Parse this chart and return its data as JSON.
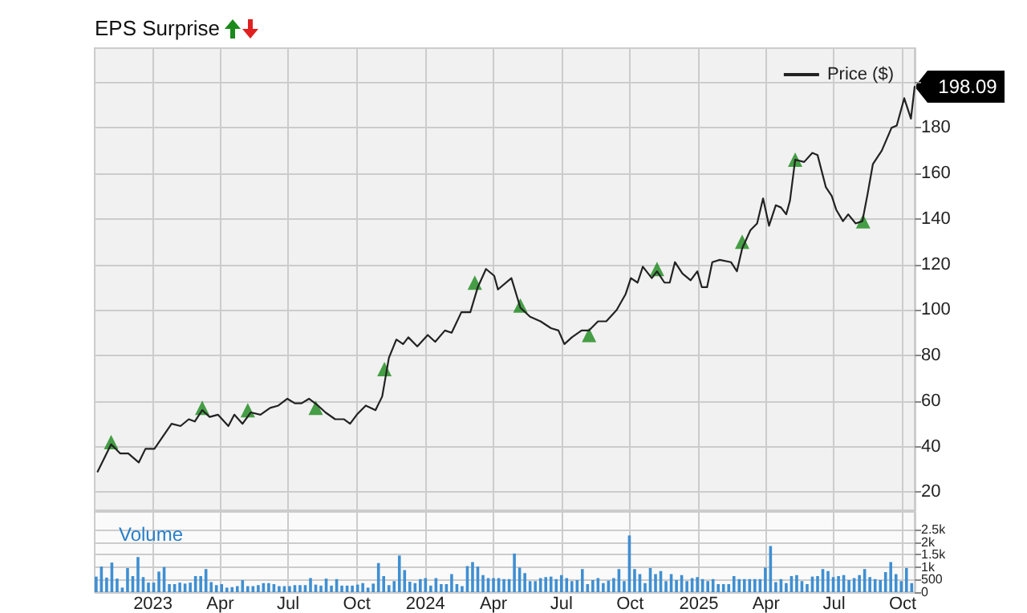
{
  "chart_data": [
    {
      "type": "line",
      "title": "EPS Surprise",
      "legend": "top right",
      "grid": true,
      "tick_labels": "y",
      "xlim": [
        "2022-10-15",
        "2025-10-17"
      ],
      "xticks": [
        {
          "value": "2023-01-01",
          "label": null
        },
        {
          "value": "2023-04-01",
          "label": null
        },
        {
          "value": "2023-07-01",
          "label": null
        },
        {
          "value": "2023-10-01",
          "label": null
        },
        {
          "value": "2024-01-01",
          "label": null
        },
        {
          "value": "2024-04-01",
          "label": null
        },
        {
          "value": "2024-07-01",
          "label": null
        },
        {
          "value": "2024-10-01",
          "label": null
        },
        {
          "value": "2025-01-01",
          "label": null
        },
        {
          "value": "2025-04-01",
          "label": null
        },
        {
          "value": "2025-07-01",
          "label": null
        },
        {
          "value": "2025-10-01",
          "label": null
        }
      ],
      "ylim": [
        12,
        215
      ],
      "yticks": [
        20,
        40,
        60,
        80,
        100,
        120,
        140,
        160,
        180,
        {
          "value": 200,
          "label": null
        }
      ],
      "annotations": [
        {
          "text": "198.09",
          "x": "2025-10-17",
          "y": 198.09
        }
      ],
      "series": [
        {
          "name": "Price ($)",
          "color": "#222222",
          "marker": "none",
          "x": [
            "2022-10-19",
            "2022-10-28",
            "2022-11-06",
            "2022-11-18",
            "2022-11-29",
            "2022-12-13",
            "2022-12-22",
            "2023-01-03",
            "2023-01-26",
            "2023-02-07",
            "2023-02-18",
            "2023-02-26",
            "2023-03-08",
            "2023-03-18",
            "2023-03-29",
            "2023-04-12",
            "2023-04-20",
            "2023-05-01",
            "2023-05-12",
            "2023-05-25",
            "2023-06-07",
            "2023-06-18",
            "2023-06-30",
            "2023-07-10",
            "2023-07-19",
            "2023-07-29",
            "2023-08-10",
            "2023-08-20",
            "2023-09-02",
            "2023-09-14",
            "2023-09-22",
            "2023-10-01",
            "2023-10-13",
            "2023-10-26",
            "2023-11-04",
            "2023-11-13",
            "2023-11-23",
            "2023-12-02",
            "2023-12-09",
            "2023-12-21",
            "2024-01-04",
            "2024-01-14",
            "2024-01-27",
            "2024-02-05",
            "2024-02-18",
            "2024-03-01",
            "2024-03-11",
            "2024-03-22",
            "2024-04-02",
            "2024-04-07",
            "2024-04-25",
            "2024-05-07",
            "2024-05-20",
            "2024-06-03",
            "2024-06-17",
            "2024-06-27",
            "2024-07-05",
            "2024-07-15",
            "2024-07-28",
            "2024-08-07",
            "2024-08-19",
            "2024-08-30",
            "2024-09-13",
            "2024-09-25",
            "2024-10-02",
            "2024-10-11",
            "2024-10-18",
            "2024-10-30",
            "2024-11-06",
            "2024-11-16",
            "2024-11-23",
            "2024-11-30",
            "2024-12-10",
            "2024-12-21",
            "2024-12-30",
            "2025-01-05",
            "2025-01-12",
            "2025-01-19",
            "2025-01-29",
            "2025-02-13",
            "2025-02-21",
            "2025-02-28",
            "2025-03-11",
            "2025-03-20",
            "2025-03-28",
            "2025-04-05",
            "2025-04-14",
            "2025-04-21",
            "2025-04-28",
            "2025-05-03",
            "2025-05-10",
            "2025-05-22",
            "2025-06-02",
            "2025-06-09",
            "2025-06-20",
            "2025-06-28",
            "2025-07-04",
            "2025-07-13",
            "2025-07-20",
            "2025-07-30",
            "2025-08-08",
            "2025-08-15",
            "2025-08-22",
            "2025-09-03",
            "2025-09-16",
            "2025-09-23",
            "2025-10-03",
            "2025-10-12",
            "2025-10-17"
          ],
          "values": [
            29,
            35,
            41,
            37,
            37,
            33,
            39,
            39,
            50,
            49,
            52,
            51,
            56,
            53,
            54,
            49,
            54,
            50,
            55,
            54,
            57,
            58,
            61,
            59,
            59,
            61,
            58,
            55,
            52,
            52,
            50,
            54,
            58,
            56,
            62,
            79,
            87,
            85,
            88,
            84,
            89,
            86,
            91,
            90,
            99,
            99,
            110,
            118,
            115,
            109,
            114,
            101,
            97,
            95,
            92,
            91,
            85,
            88,
            91,
            91,
            95,
            95,
            100,
            107,
            114,
            112,
            119,
            114,
            117,
            112,
            112,
            121,
            116,
            113,
            117,
            110,
            110,
            121,
            122,
            121,
            117,
            127,
            135,
            138,
            149,
            137,
            146,
            145,
            142,
            148,
            166,
            165,
            169,
            168,
            154,
            150,
            144,
            139,
            142,
            138,
            139,
            151,
            164,
            170,
            180,
            181,
            193,
            184,
            198.09
          ]
        },
        {
          "type": "scatter",
          "color": "#1a8a1a",
          "marker": "triangle",
          "x": [
            "2022-11-06",
            "2023-03-08",
            "2023-05-08",
            "2023-08-07",
            "2023-11-07",
            "2024-03-07",
            "2024-05-07",
            "2024-08-07",
            "2024-11-06",
            "2025-02-28",
            "2025-05-10",
            "2025-08-09"
          ],
          "values": [
            42,
            57,
            56,
            57,
            74,
            112,
            102,
            89,
            118,
            130,
            166,
            139
          ]
        }
      ]
    },
    {
      "type": "bar",
      "title": "Volume",
      "legend": false,
      "grid": true,
      "xlim": [
        "2022-10-15",
        "2025-10-17"
      ],
      "xticks": [
        {
          "value": "2023-01-01",
          "label": "2023"
        },
        {
          "value": "2023-04-01",
          "label": "Apr"
        },
        {
          "value": "2023-07-01",
          "label": "Jul"
        },
        {
          "value": "2023-10-01",
          "label": "Oct"
        },
        {
          "value": "2024-01-01",
          "label": "2024"
        },
        {
          "value": "2024-04-01",
          "label": "Apr"
        },
        {
          "value": "2024-07-01",
          "label": "Jul"
        },
        {
          "value": "2024-10-01",
          "label": "Oct"
        },
        {
          "value": "2025-01-01",
          "label": "2025"
        },
        {
          "value": "2025-04-01",
          "label": "Apr"
        },
        {
          "value": "2025-07-01",
          "label": "Jul"
        },
        {
          "value": "2025-10-01",
          "label": "Oct"
        }
      ],
      "ylim": [
        0,
        3200
      ],
      "yticks": [
        0,
        500,
        {
          "value": 1000,
          "label": "1k"
        },
        {
          "value": 1500,
          "label": "1.5k"
        },
        {
          "value": 2000,
          "label": "2k"
        },
        {
          "value": 2500,
          "label": "2.5k"
        }
      ],
      "series": [
        {
          "color": "#3f8fd2",
          "x": [
            "2022-10-17",
            "2022-10-24",
            "2022-10-31",
            "2022-11-07",
            "2022-11-14",
            "2022-11-21",
            "2022-11-28",
            "2022-12-05",
            "2022-12-12",
            "2022-12-19",
            "2022-12-26",
            "2023-01-02",
            "2023-01-09",
            "2023-01-16",
            "2023-01-23",
            "2023-01-30",
            "2023-02-06",
            "2023-02-13",
            "2023-02-20",
            "2023-02-27",
            "2023-03-06",
            "2023-03-13",
            "2023-03-20",
            "2023-03-27",
            "2023-04-03",
            "2023-04-10",
            "2023-04-17",
            "2023-04-24",
            "2023-05-01",
            "2023-05-08",
            "2023-05-15",
            "2023-05-22",
            "2023-05-29",
            "2023-06-05",
            "2023-06-12",
            "2023-06-19",
            "2023-06-26",
            "2023-07-03",
            "2023-07-10",
            "2023-07-17",
            "2023-07-24",
            "2023-07-31",
            "2023-08-07",
            "2023-08-14",
            "2023-08-21",
            "2023-08-28",
            "2023-09-04",
            "2023-09-11",
            "2023-09-18",
            "2023-09-25",
            "2023-10-02",
            "2023-10-09",
            "2023-10-16",
            "2023-10-23",
            "2023-10-30",
            "2023-11-06",
            "2023-11-13",
            "2023-11-20",
            "2023-11-27",
            "2023-12-04",
            "2023-12-11",
            "2023-12-18",
            "2023-12-25",
            "2024-01-01",
            "2024-01-08",
            "2024-01-15",
            "2024-01-22",
            "2024-01-29",
            "2024-02-05",
            "2024-02-12",
            "2024-02-19",
            "2024-02-26",
            "2024-03-04",
            "2024-03-11",
            "2024-03-18",
            "2024-03-25",
            "2024-04-01",
            "2024-04-08",
            "2024-04-15",
            "2024-04-22",
            "2024-04-29",
            "2024-05-06",
            "2024-05-13",
            "2024-05-20",
            "2024-05-27",
            "2024-06-03",
            "2024-06-10",
            "2024-06-17",
            "2024-06-24",
            "2024-07-01",
            "2024-07-08",
            "2024-07-15",
            "2024-07-22",
            "2024-07-29",
            "2024-08-05",
            "2024-08-12",
            "2024-08-19",
            "2024-08-26",
            "2024-09-02",
            "2024-09-09",
            "2024-09-16",
            "2024-09-23",
            "2024-09-30",
            "2024-10-07",
            "2024-10-14",
            "2024-10-21",
            "2024-10-28",
            "2024-11-04",
            "2024-11-11",
            "2024-11-18",
            "2024-11-25",
            "2024-12-02",
            "2024-12-09",
            "2024-12-16",
            "2024-12-23",
            "2024-12-30",
            "2025-01-06",
            "2025-01-13",
            "2025-01-20",
            "2025-01-27",
            "2025-02-03",
            "2025-02-10",
            "2025-02-17",
            "2025-02-24",
            "2025-03-03",
            "2025-03-10",
            "2025-03-17",
            "2025-03-24",
            "2025-03-31",
            "2025-04-07",
            "2025-04-14",
            "2025-04-21",
            "2025-04-28",
            "2025-05-05",
            "2025-05-12",
            "2025-05-19",
            "2025-05-26",
            "2025-06-02",
            "2025-06-09",
            "2025-06-16",
            "2025-06-23",
            "2025-06-30",
            "2025-07-07",
            "2025-07-14",
            "2025-07-21",
            "2025-07-28",
            "2025-08-04",
            "2025-08-11",
            "2025-08-18",
            "2025-08-25",
            "2025-09-01",
            "2025-09-08",
            "2025-09-15",
            "2025-09-22",
            "2025-09-29",
            "2025-10-06",
            "2025-10-13"
          ],
          "values": [
            620,
            1020,
            580,
            1180,
            540,
            180,
            960,
            640,
            1400,
            600,
            380,
            380,
            820,
            1000,
            320,
            320,
            380,
            340,
            380,
            640,
            640,
            920,
            400,
            280,
            320,
            180,
            200,
            240,
            480,
            240,
            240,
            280,
            360,
            360,
            320,
            240,
            240,
            240,
            280,
            280,
            280,
            560,
            300,
            260,
            540,
            260,
            520,
            260,
            260,
            260,
            300,
            360,
            180,
            340,
            1160,
            640,
            280,
            440,
            1460,
            880,
            420,
            360,
            520,
            560,
            260,
            560,
            320,
            320,
            720,
            320,
            240,
            1040,
            1200,
            1020,
            680,
            560,
            560,
            560,
            520,
            520,
            1540,
            980,
            760,
            440,
            440,
            560,
            600,
            620,
            520,
            680,
            560,
            440,
            480,
            920,
            320,
            480,
            560,
            360,
            460,
            560,
            920,
            440,
            2260,
            920,
            720,
            360,
            960,
            720,
            840,
            440,
            720,
            480,
            680,
            440,
            560,
            600,
            520,
            440,
            520,
            320,
            320,
            320,
            640,
            520,
            520,
            520,
            520,
            520,
            980,
            1840,
            400,
            520,
            360,
            640,
            680,
            440,
            320,
            620,
            640,
            920,
            840,
            600,
            640,
            680,
            480,
            560,
            680,
            920,
            600,
            520,
            480,
            800,
            1200,
            720,
            440,
            960,
            360
          ]
        }
      ]
    }
  ]
}
